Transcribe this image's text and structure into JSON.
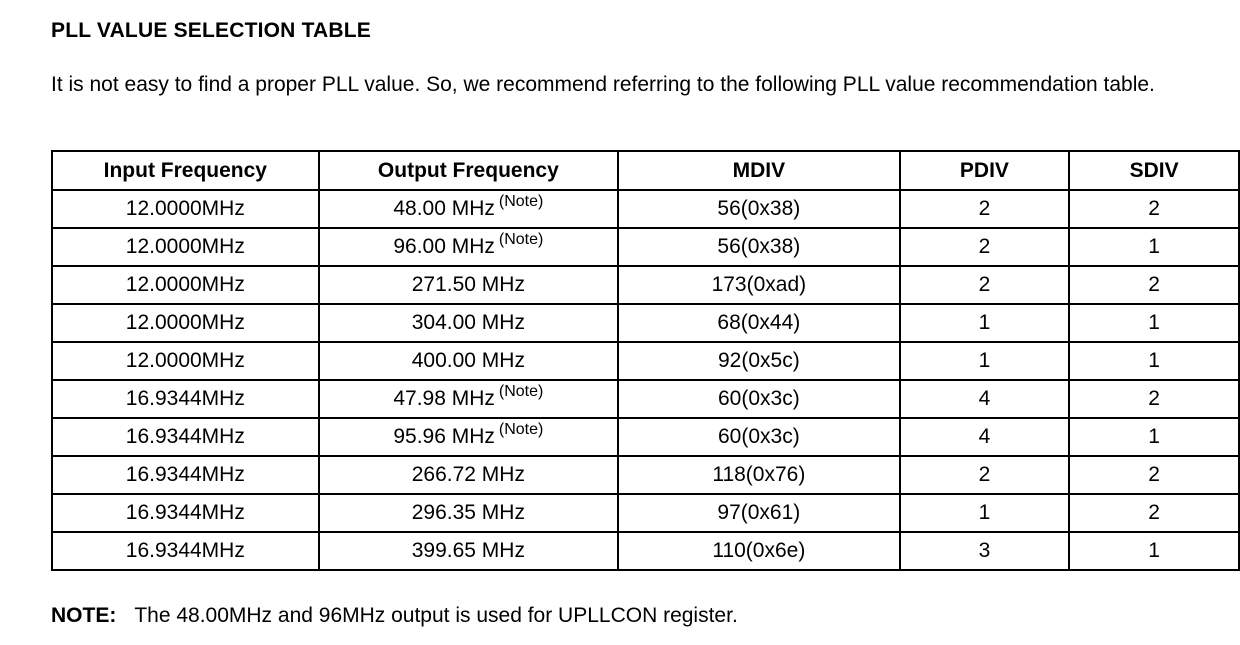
{
  "title": "PLL VALUE SELECTION TABLE",
  "intro": "It is not easy to find a proper PLL value. So, we recommend referring to the following PLL value recommendation table.",
  "table": {
    "headers": [
      "Input Frequency",
      "Output Frequency",
      "MDIV",
      "PDIV",
      "SDIV"
    ],
    "rows": [
      {
        "input": "12.0000MHz",
        "output": "48.00 MHz",
        "note": "(Note)",
        "mdiv": "56(0x38)",
        "pdiv": "2",
        "sdiv": "2"
      },
      {
        "input": "12.0000MHz",
        "output": "96.00 MHz",
        "note": "(Note)",
        "mdiv": "56(0x38)",
        "pdiv": "2",
        "sdiv": "1"
      },
      {
        "input": "12.0000MHz",
        "output": "271.50 MHz",
        "note": "",
        "mdiv": "173(0xad)",
        "pdiv": "2",
        "sdiv": "2"
      },
      {
        "input": "12.0000MHz",
        "output": "304.00 MHz",
        "note": "",
        "mdiv": "68(0x44)",
        "pdiv": "1",
        "sdiv": "1"
      },
      {
        "input": "12.0000MHz",
        "output": "400.00 MHz",
        "note": "",
        "mdiv": "92(0x5c)",
        "pdiv": "1",
        "sdiv": "1"
      },
      {
        "input": "16.9344MHz",
        "output": "47.98 MHz",
        "note": "(Note)",
        "mdiv": "60(0x3c)",
        "pdiv": "4",
        "sdiv": "2"
      },
      {
        "input": "16.9344MHz",
        "output": "95.96 MHz",
        "note": "(Note)",
        "mdiv": "60(0x3c)",
        "pdiv": "4",
        "sdiv": "1"
      },
      {
        "input": "16.9344MHz",
        "output": "266.72 MHz",
        "note": "",
        "mdiv": "118(0x76)",
        "pdiv": "2",
        "sdiv": "2"
      },
      {
        "input": "16.9344MHz",
        "output": "296.35 MHz",
        "note": "",
        "mdiv": "97(0x61)",
        "pdiv": "1",
        "sdiv": "2"
      },
      {
        "input": "16.9344MHz",
        "output": "399.65 MHz",
        "note": "",
        "mdiv": "110(0x6e)",
        "pdiv": "3",
        "sdiv": "1"
      }
    ]
  },
  "note": {
    "label": "NOTE:",
    "text": "The 48.00MHz and 96MHz output is used for UPLLCON register."
  }
}
